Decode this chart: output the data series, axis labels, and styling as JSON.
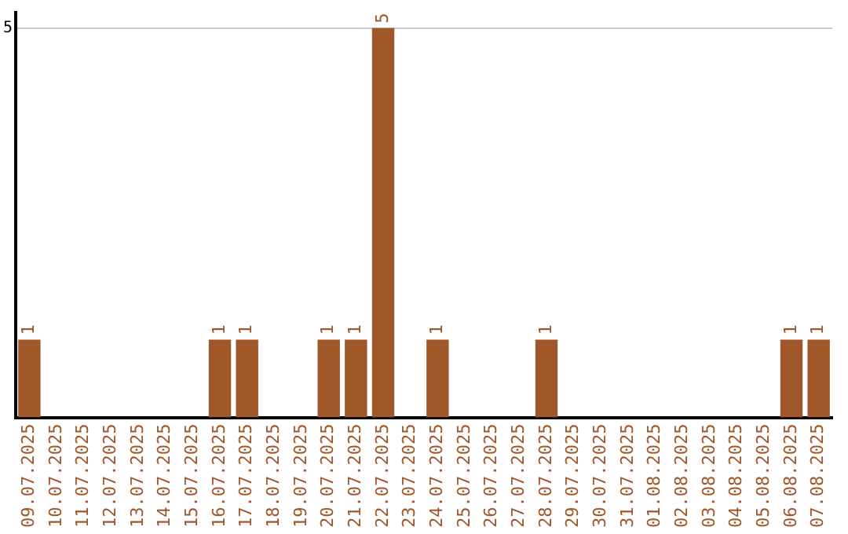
{
  "chart_data": {
    "type": "bar",
    "categories": [
      "09.07.2025",
      "10.07.2025",
      "11.07.2025",
      "12.07.2025",
      "13.07.2025",
      "14.07.2025",
      "15.07.2025",
      "16.07.2025",
      "17.07.2025",
      "18.07.2025",
      "19.07.2025",
      "20.07.2025",
      "21.07.2025",
      "22.07.2025",
      "23.07.2025",
      "24.07.2025",
      "25.07.2025",
      "26.07.2025",
      "27.07.2025",
      "28.07.2025",
      "29.07.2025",
      "30.07.2025",
      "31.07.2025",
      "01.08.2025",
      "02.08.2025",
      "03.08.2025",
      "04.08.2025",
      "05.08.2025",
      "06.08.2025",
      "07.08.2025"
    ],
    "values": [
      1,
      0,
      0,
      0,
      0,
      0,
      0,
      1,
      1,
      0,
      0,
      1,
      1,
      5,
      0,
      1,
      0,
      0,
      0,
      1,
      0,
      0,
      0,
      0,
      0,
      0,
      0,
      0,
      1,
      1
    ],
    "value_labels": [
      "1",
      null,
      null,
      null,
      null,
      null,
      null,
      "1",
      "1",
      null,
      null,
      "1",
      "1",
      "5",
      null,
      "1",
      null,
      null,
      null,
      "1",
      null,
      null,
      null,
      null,
      null,
      null,
      null,
      null,
      "1",
      "1"
    ],
    "color": "#a0572a",
    "ylim": [
      0,
      5.2
    ],
    "yticks": [
      5
    ],
    "grid": "y",
    "legend": false
  }
}
